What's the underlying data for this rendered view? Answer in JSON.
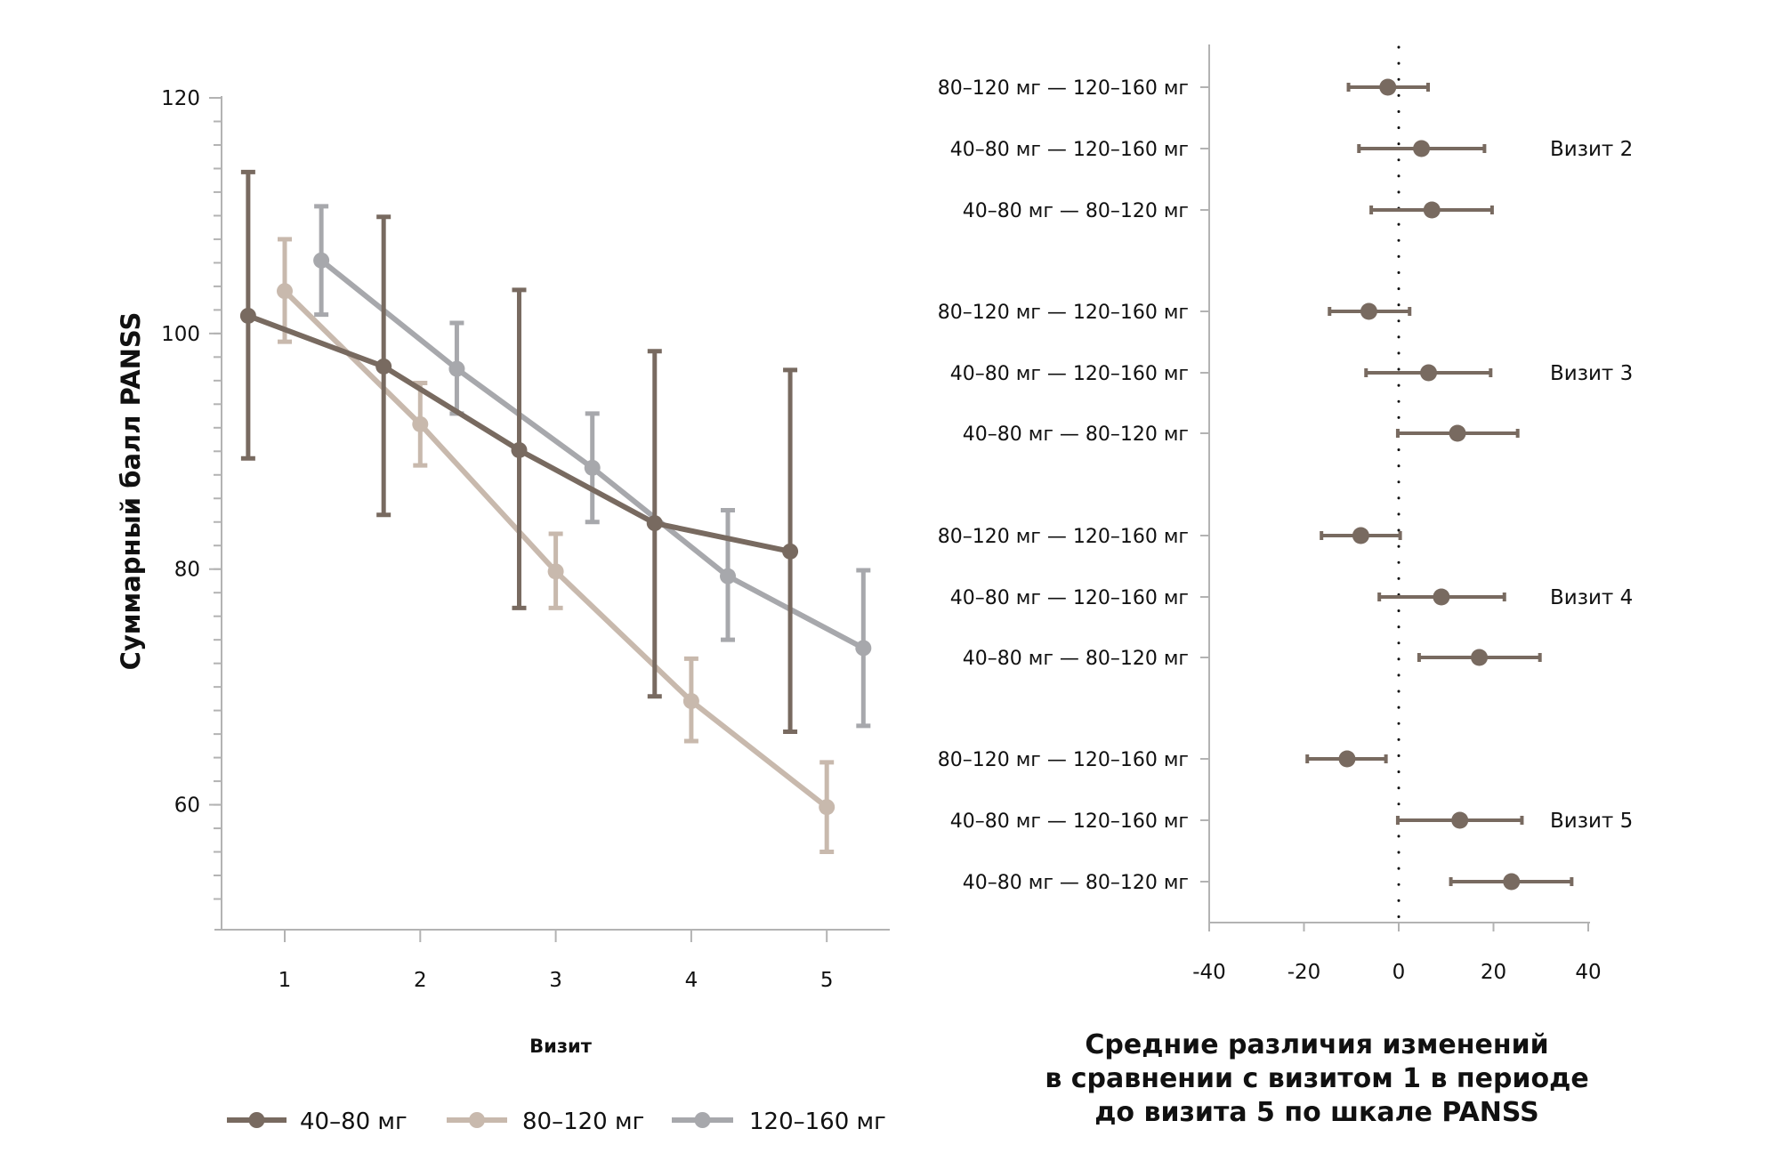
{
  "colors": {
    "dose_40_80": "#786A60",
    "dose_80_120": "#C8B9AD",
    "dose_120_160": "#A7A8AC",
    "forest": "#786A60",
    "axis": "#B3B3B3",
    "zero_line": "#111111"
  },
  "chart_data": [
    {
      "type": "line",
      "title": "",
      "xlabel": "Визит",
      "ylabel": "Суммарный балл PANSS",
      "x": [
        1,
        2,
        3,
        4,
        5
      ],
      "x_tick_labels": [
        "1",
        "2",
        "3",
        "4",
        "5"
      ],
      "ylim": [
        50,
        120
      ],
      "y_major_ticks": [
        60,
        80,
        100,
        120
      ],
      "y_tick_labels": [
        "60",
        "80",
        "100",
        "120"
      ],
      "y_minor_tick_step": 2,
      "grid": false,
      "legend_position": "bottom",
      "error_bars": true,
      "series": [
        {
          "name": "40–80 мг",
          "color_key": "dose_40_80",
          "x_offset": -0.27,
          "values": [
            101.5,
            97.2,
            90.1,
            83.9,
            81.5
          ],
          "err_low": [
            89.4,
            84.6,
            76.7,
            69.2,
            66.2
          ],
          "err_high": [
            113.7,
            109.9,
            103.7,
            98.5,
            96.9
          ]
        },
        {
          "name": "80–120 мг",
          "color_key": "dose_80_120",
          "x_offset": 0,
          "values": [
            103.6,
            92.3,
            79.8,
            68.8,
            59.8
          ],
          "err_low": [
            99.3,
            88.8,
            76.7,
            65.4,
            56.0
          ],
          "err_high": [
            108.0,
            95.8,
            83.0,
            72.4,
            63.6
          ]
        },
        {
          "name": "120–160 мг",
          "color_key": "dose_120_160",
          "x_offset": 0.27,
          "values": [
            106.2,
            97.0,
            88.6,
            79.4,
            73.3
          ],
          "err_low": [
            101.6,
            93.2,
            84.0,
            74.0,
            66.7
          ],
          "err_high": [
            110.8,
            100.9,
            93.2,
            85.0,
            79.9
          ]
        }
      ]
    },
    {
      "type": "scatter",
      "subtype": "forest",
      "title": "Средние различия изменений в сравнении с визитом 1 в периоде до визита 5 по шкале PANSS",
      "title_lines": [
        "Средние различия изменений",
        "в сравнении с визитом 1 в периоде",
        "до визита 5 по шкале PANSS"
      ],
      "xlabel": "",
      "ylabel": "",
      "xlim": [
        -40,
        40
      ],
      "x_ticks": [
        -40,
        -20,
        0,
        20,
        40
      ],
      "x_tick_labels": [
        "-40",
        "-20",
        "0",
        "20",
        "40"
      ],
      "reference_line": 0,
      "reference_line_style": "dotted",
      "grid": false,
      "groups": [
        {
          "label": "Визит 2",
          "rows": [
            {
              "label": "80–120 мг — 120–160 мг",
              "mean": -2.3,
              "low": -10.6,
              "high": 6.2
            },
            {
              "label": "40–80 мг — 120–160 мг",
              "mean": 4.8,
              "low": -8.4,
              "high": 18.1
            },
            {
              "label": "40–80 мг — 80–120 мг",
              "mean": 7.0,
              "low": -5.8,
              "high": 19.7
            }
          ]
        },
        {
          "label": "Визит 3",
          "rows": [
            {
              "label": "80–120 мг — 120–160 мг",
              "mean": -6.3,
              "low": -14.6,
              "high": 2.3
            },
            {
              "label": "40–80 мг — 120–160 мг",
              "mean": 6.3,
              "low": -6.9,
              "high": 19.4
            },
            {
              "label": "40–80 мг — 80–120 мг",
              "mean": 12.4,
              "low": -0.2,
              "high": 25.1
            }
          ]
        },
        {
          "label": "Визит 4",
          "rows": [
            {
              "label": "80–120 мг — 120–160 мг",
              "mean": -8.0,
              "low": -16.3,
              "high": 0.3
            },
            {
              "label": "40–80 мг — 120–160 мг",
              "mean": 9.0,
              "low": -4.1,
              "high": 22.3
            },
            {
              "label": "40–80 мг — 80–120 мг",
              "mean": 17.0,
              "low": 4.3,
              "high": 29.8
            }
          ]
        },
        {
          "label": "Визит 5",
          "rows": [
            {
              "label": "80–120 мг — 120–160 мг",
              "mean": -10.9,
              "low": -19.3,
              "high": -2.7
            },
            {
              "label": "40–80 мг — 120–160 мг",
              "mean": 12.9,
              "low": -0.2,
              "high": 26.0
            },
            {
              "label": "40–80 мг — 80–120 мг",
              "mean": 23.8,
              "low": 11.0,
              "high": 36.5
            }
          ]
        }
      ]
    }
  ]
}
